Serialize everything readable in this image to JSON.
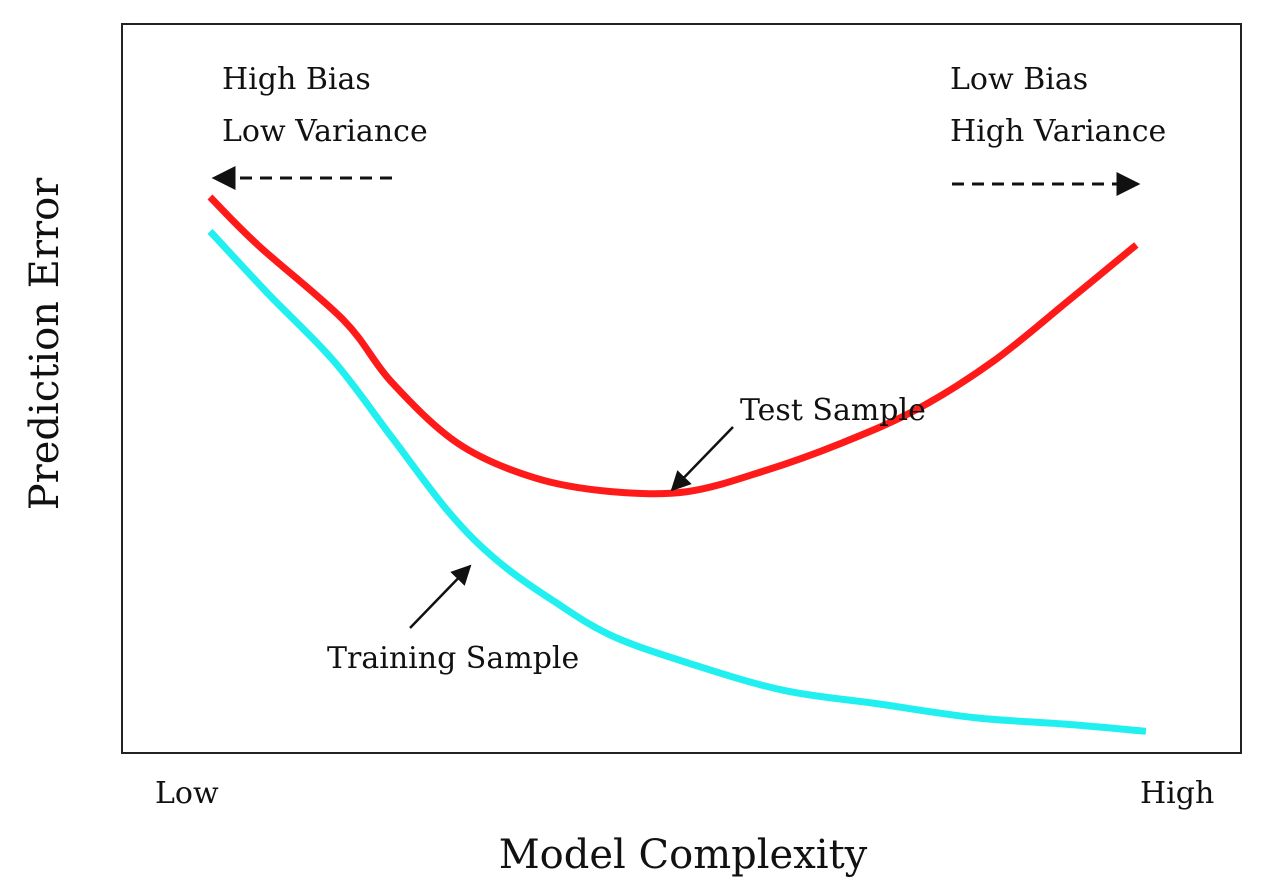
{
  "chart_data": {
    "type": "line",
    "title": "",
    "xlabel": "Model Complexity",
    "ylabel": "Prediction Error",
    "x_tick_labels": [
      "Low",
      "High"
    ],
    "grid": false,
    "legend": "none",
    "xlim": [
      0,
      1
    ],
    "ylim": [
      0,
      1
    ],
    "series": [
      {
        "name": "Test Sample",
        "color": "#ff1a1a",
        "x": [
          0.0,
          0.05,
          0.14,
          0.19,
          0.26,
          0.34,
          0.42,
          0.5,
          0.58,
          0.66,
          0.74,
          0.82,
          0.9,
          0.97
        ],
        "y": [
          0.8,
          0.73,
          0.62,
          0.53,
          0.44,
          0.39,
          0.37,
          0.37,
          0.4,
          0.44,
          0.49,
          0.56,
          0.65,
          0.73
        ]
      },
      {
        "name": "Training Sample",
        "color": "#22f0f0",
        "x": [
          0.0,
          0.06,
          0.13,
          0.19,
          0.25,
          0.3,
          0.36,
          0.42,
          0.5,
          0.6,
          0.7,
          0.8,
          0.9,
          0.98
        ],
        "y": [
          0.75,
          0.66,
          0.56,
          0.45,
          0.34,
          0.27,
          0.21,
          0.16,
          0.12,
          0.08,
          0.06,
          0.04,
          0.03,
          0.02
        ]
      }
    ],
    "annotations": {
      "left_region": [
        "High Bias",
        "Low Variance"
      ],
      "right_region": [
        "Low Bias",
        "High Variance"
      ],
      "test_label": "Test Sample",
      "train_label": "Training Sample"
    }
  }
}
